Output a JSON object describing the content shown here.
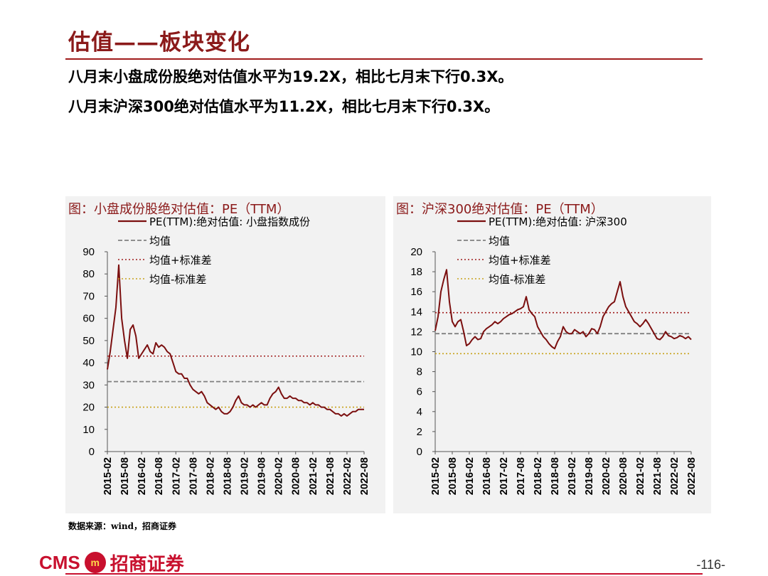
{
  "header": {
    "title": "估值——板块变化",
    "bullets": [
      "八月末小盘成份股绝对估值水平为19.2X，相比七月末下行0.3X。",
      "八月末沪深300绝对估值水平为11.2X，相比七月末下行0.3X。"
    ]
  },
  "panels": {
    "left": {
      "title": "图：小盘成份股绝对估值：PE（TTM）"
    },
    "right": {
      "title": "图：沪深300绝对估值：PE（TTM）"
    }
  },
  "source": "数据来源：wind，招商证券",
  "footer": {
    "logo_cms": "CMS",
    "logo_emblem": "m",
    "logo_cn": "招商证券",
    "page_number": "-116-"
  },
  "colors": {
    "accent": "#8b1a1a",
    "pe_line": "#7b0f0f",
    "mean": "#808080",
    "plus_std": "#a01c1c",
    "minus_std": "#c8a21a"
  },
  "chart_data": [
    {
      "type": "line",
      "title": "图：小盘成份股绝对估值：PE（TTM）",
      "xlabel": "",
      "ylabel": "",
      "ylim": [
        0,
        90
      ],
      "yticks": [
        0,
        10,
        20,
        30,
        40,
        50,
        60,
        70,
        80,
        90
      ],
      "x_tick_labels": [
        "2015-02",
        "2015-08",
        "2016-02",
        "2016-08",
        "2017-02",
        "2017-08",
        "2018-02",
        "2018-08",
        "2019-02",
        "2019-08",
        "2020-02",
        "2020-08",
        "2021-02",
        "2021-08",
        "2022-02",
        "2022-08"
      ],
      "legend_placement": "top",
      "grid": false,
      "series": [
        {
          "name": "PE(TTM):绝对估值: 小盘指数成份",
          "style": "solid",
          "x": [
            "2015-02",
            "2015-03",
            "2015-04",
            "2015-05",
            "2015-06",
            "2015-07",
            "2015-08",
            "2015-09",
            "2015-10",
            "2015-11",
            "2015-12",
            "2016-01",
            "2016-02",
            "2016-03",
            "2016-04",
            "2016-05",
            "2016-06",
            "2016-07",
            "2016-08",
            "2016-09",
            "2016-10",
            "2016-11",
            "2016-12",
            "2017-01",
            "2017-02",
            "2017-03",
            "2017-04",
            "2017-05",
            "2017-06",
            "2017-07",
            "2017-08",
            "2017-09",
            "2017-10",
            "2017-11",
            "2017-12",
            "2018-01",
            "2018-02",
            "2018-03",
            "2018-04",
            "2018-05",
            "2018-06",
            "2018-07",
            "2018-08",
            "2018-09",
            "2018-10",
            "2018-11",
            "2018-12",
            "2019-01",
            "2019-02",
            "2019-03",
            "2019-04",
            "2019-05",
            "2019-06",
            "2019-07",
            "2019-08",
            "2019-09",
            "2019-10",
            "2019-11",
            "2019-12",
            "2020-01",
            "2020-02",
            "2020-03",
            "2020-04",
            "2020-05",
            "2020-06",
            "2020-07",
            "2020-08",
            "2020-09",
            "2020-10",
            "2020-11",
            "2020-12",
            "2021-01",
            "2021-02",
            "2021-03",
            "2021-04",
            "2021-05",
            "2021-06",
            "2021-07",
            "2021-08",
            "2021-09",
            "2021-10",
            "2021-11",
            "2021-12",
            "2022-01",
            "2022-02",
            "2022-03",
            "2022-04",
            "2022-05",
            "2022-06",
            "2022-07",
            "2022-08"
          ],
          "values": [
            37,
            45,
            55,
            65,
            84,
            60,
            50,
            42,
            55,
            57,
            52,
            42,
            44,
            46,
            48,
            45,
            44,
            49,
            47,
            48,
            47,
            45,
            44,
            40,
            36,
            35,
            35,
            33,
            33,
            30,
            28,
            27,
            26,
            27,
            25,
            22,
            21,
            20,
            19,
            20,
            18,
            17,
            17,
            18,
            20,
            23,
            25,
            22,
            21,
            21,
            20,
            21,
            20,
            21,
            22,
            21,
            21,
            24,
            26,
            27,
            29,
            26,
            24,
            24,
            25,
            24,
            24,
            23,
            23,
            22,
            22,
            21,
            22,
            21,
            21,
            20,
            20,
            19,
            19,
            18,
            17,
            17,
            16,
            17,
            16,
            17,
            18,
            18,
            19,
            19,
            19
          ]
        },
        {
          "name": "均值",
          "style": "dashed",
          "value": 31.5
        },
        {
          "name": "均值+标准差",
          "style": "dotted",
          "value": 43
        },
        {
          "name": "均值-标准差",
          "style": "dotted",
          "value": 20
        }
      ]
    },
    {
      "type": "line",
      "title": "图：沪深300绝对估值：PE（TTM）",
      "xlabel": "",
      "ylabel": "",
      "ylim": [
        0,
        20
      ],
      "yticks": [
        0,
        2,
        4,
        6,
        8,
        10,
        12,
        14,
        16,
        18,
        20
      ],
      "x_tick_labels": [
        "2015-02",
        "2015-08",
        "2016-02",
        "2016-08",
        "2017-02",
        "2017-08",
        "2018-02",
        "2018-08",
        "2019-02",
        "2019-08",
        "2020-02",
        "2020-08",
        "2021-02",
        "2021-08",
        "2022-02",
        "2022-08"
      ],
      "legend_placement": "top",
      "grid": false,
      "series": [
        {
          "name": "PE(TTM):绝对估值: 沪深300",
          "style": "solid",
          "x": [
            "2015-02",
            "2015-03",
            "2015-04",
            "2015-05",
            "2015-06",
            "2015-07",
            "2015-08",
            "2015-09",
            "2015-10",
            "2015-11",
            "2015-12",
            "2016-01",
            "2016-02",
            "2016-03",
            "2016-04",
            "2016-05",
            "2016-06",
            "2016-07",
            "2016-08",
            "2016-09",
            "2016-10",
            "2016-11",
            "2016-12",
            "2017-01",
            "2017-02",
            "2017-03",
            "2017-04",
            "2017-05",
            "2017-06",
            "2017-07",
            "2017-08",
            "2017-09",
            "2017-10",
            "2017-11",
            "2017-12",
            "2018-01",
            "2018-02",
            "2018-03",
            "2018-04",
            "2018-05",
            "2018-06",
            "2018-07",
            "2018-08",
            "2018-09",
            "2018-10",
            "2018-11",
            "2018-12",
            "2019-01",
            "2019-02",
            "2019-03",
            "2019-04",
            "2019-05",
            "2019-06",
            "2019-07",
            "2019-08",
            "2019-09",
            "2019-10",
            "2019-11",
            "2019-12",
            "2020-01",
            "2020-02",
            "2020-03",
            "2020-04",
            "2020-05",
            "2020-06",
            "2020-07",
            "2020-08",
            "2020-09",
            "2020-10",
            "2020-11",
            "2020-12",
            "2021-01",
            "2021-02",
            "2021-03",
            "2021-04",
            "2021-05",
            "2021-06",
            "2021-07",
            "2021-08",
            "2021-09",
            "2021-10",
            "2021-11",
            "2021-12",
            "2022-01",
            "2022-02",
            "2022-03",
            "2022-04",
            "2022-05",
            "2022-06",
            "2022-07",
            "2022-08"
          ],
          "values": [
            12.1,
            13.5,
            16.0,
            17.2,
            18.2,
            15.0,
            13.0,
            12.5,
            13.0,
            13.2,
            12.0,
            10.6,
            10.8,
            11.2,
            11.5,
            11.2,
            11.3,
            12.0,
            12.3,
            12.5,
            12.7,
            13.0,
            12.8,
            13.0,
            13.3,
            13.5,
            13.7,
            13.8,
            14.0,
            14.2,
            14.3,
            14.5,
            15.5,
            14.2,
            13.8,
            13.5,
            12.5,
            12.0,
            11.5,
            11.2,
            10.8,
            10.5,
            10.3,
            11.0,
            11.5,
            12.5,
            12.0,
            11.8,
            11.8,
            12.2,
            12.0,
            11.8,
            12.0,
            11.5,
            11.8,
            12.3,
            12.2,
            11.8,
            12.5,
            13.5,
            14.0,
            14.5,
            14.8,
            15.0,
            16.0,
            17.0,
            15.5,
            14.5,
            14.0,
            13.5,
            13.0,
            12.8,
            12.5,
            12.8,
            13.2,
            12.8,
            12.3,
            11.8,
            11.3,
            11.2,
            11.5,
            12.0,
            11.6,
            11.5,
            11.3,
            11.4,
            11.6,
            11.5,
            11.3,
            11.5,
            11.2
          ]
        },
        {
          "name": "均值",
          "style": "dashed",
          "value": 11.8
        },
        {
          "name": "均值+标准差",
          "style": "dotted",
          "value": 13.9
        },
        {
          "name": "均值-标准差",
          "style": "dotted",
          "value": 9.8
        }
      ]
    }
  ]
}
